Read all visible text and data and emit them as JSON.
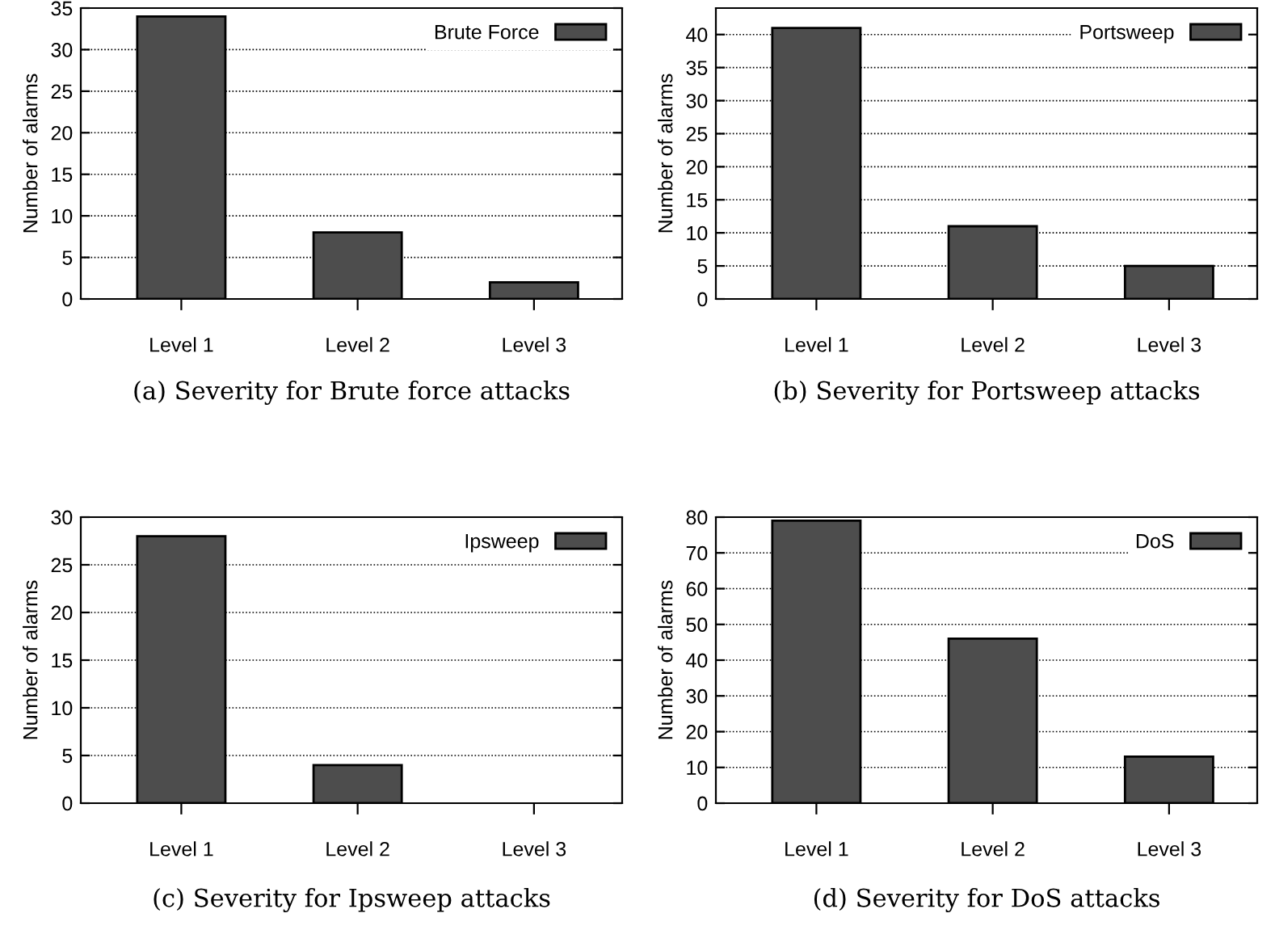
{
  "chart_data": [
    {
      "type": "bar",
      "title": "(a) Severity for Brute force attacks",
      "ylabel": "Number of alarms",
      "categories": [
        "Level 1",
        "Level 2",
        "Level 3"
      ],
      "series": [
        {
          "name": "Brute Force",
          "color": "#4d4d4d",
          "values": [
            34,
            8,
            2
          ]
        }
      ],
      "ylim": [
        0,
        35
      ],
      "yticks": [
        0,
        5,
        10,
        15,
        20,
        25,
        30,
        35
      ],
      "grid": "y",
      "legend": "top right"
    },
    {
      "type": "bar",
      "title": "(b) Severity for Portsweep attacks",
      "ylabel": "Number of alarms",
      "categories": [
        "Level 1",
        "Level 2",
        "Level 3"
      ],
      "series": [
        {
          "name": "Portsweep",
          "color": "#4d4d4d",
          "values": [
            41,
            11,
            5
          ]
        }
      ],
      "ylim": [
        0,
        44
      ],
      "yticks": [
        0,
        5,
        10,
        15,
        20,
        25,
        30,
        35,
        40
      ],
      "grid": "y",
      "legend": "top right"
    },
    {
      "type": "bar",
      "title": "(c) Severity for Ipsweep attacks",
      "ylabel": "Number of alarms",
      "categories": [
        "Level 1",
        "Level 2",
        "Level 3"
      ],
      "series": [
        {
          "name": "Ipsweep",
          "color": "#4d4d4d",
          "values": [
            28,
            4,
            0
          ]
        }
      ],
      "ylim": [
        0,
        30
      ],
      "yticks": [
        0,
        5,
        10,
        15,
        20,
        25,
        30
      ],
      "grid": "y",
      "legend": "top right"
    },
    {
      "type": "bar",
      "title": "(d) Severity for DoS attacks",
      "ylabel": "Number of alarms",
      "categories": [
        "Level 1",
        "Level 2",
        "Level 3"
      ],
      "series": [
        {
          "name": "DoS",
          "color": "#4d4d4d",
          "values": [
            79,
            46,
            13
          ]
        }
      ],
      "ylim": [
        0,
        80
      ],
      "yticks": [
        0,
        10,
        20,
        30,
        40,
        50,
        60,
        70,
        80
      ],
      "grid": "y",
      "legend": "top right"
    }
  ]
}
